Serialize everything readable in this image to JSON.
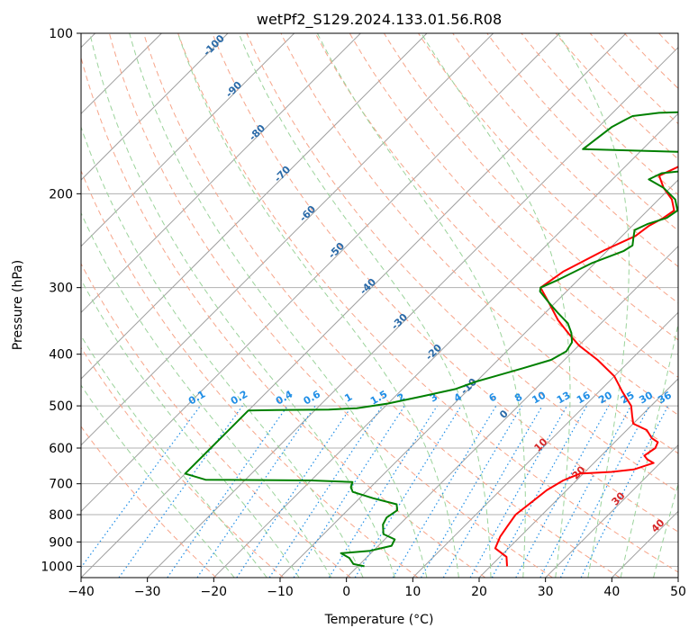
{
  "chart_data": {
    "type": "line",
    "title": "wetPf2_S129.2024.133.01.56.R08",
    "xlabel": "Temperature (°C)",
    "ylabel": "Pressure (hPa)",
    "xlim": [
      -40,
      50
    ],
    "ylim": [
      1050,
      100
    ],
    "yscale": "log",
    "grid": true,
    "x_ticks": [
      "−40",
      "−30",
      "−20",
      "−10",
      "0",
      "10",
      "20",
      "30",
      "40",
      "50"
    ],
    "y_ticks": [
      "100",
      "200",
      "300",
      "400",
      "500",
      "600",
      "700",
      "800",
      "900",
      "1000"
    ],
    "series": [
      {
        "color": "#ff0000",
        "points": [
          [
            22.5,
            1000
          ],
          [
            21.0,
            960
          ],
          [
            18.0,
            925
          ],
          [
            17.0,
            880
          ],
          [
            16.5,
            840
          ],
          [
            16.0,
            800
          ],
          [
            16.5,
            760
          ],
          [
            17.0,
            720
          ],
          [
            18.0,
            690
          ],
          [
            19.5,
            670
          ],
          [
            24.0,
            665
          ],
          [
            27.0,
            658
          ],
          [
            29.0,
            640
          ],
          [
            27.5,
            630
          ],
          [
            26.5,
            620
          ],
          [
            27.0,
            600
          ],
          [
            26.5,
            585
          ],
          [
            25.0,
            575
          ],
          [
            23.0,
            555
          ],
          [
            20.0,
            540
          ],
          [
            18.5,
            520
          ],
          [
            17.0,
            500
          ],
          [
            13.5,
            470
          ],
          [
            10.0,
            440
          ],
          [
            5.0,
            410
          ],
          [
            0.0,
            385
          ],
          [
            -3.5,
            365
          ],
          [
            -7.0,
            345
          ],
          [
            -11.0,
            320
          ],
          [
            -14.5,
            300
          ],
          [
            -13.5,
            280
          ],
          [
            -10.5,
            255
          ],
          [
            -8.0,
            240
          ],
          [
            -7.5,
            230
          ],
          [
            -6.5,
            222
          ],
          [
            -6.0,
            215
          ],
          [
            -8.0,
            205
          ],
          [
            -11.0,
            195
          ],
          [
            -13.5,
            185
          ],
          [
            -12.0,
            178
          ],
          [
            -8.0,
            175
          ],
          [
            -3.0,
            173
          ],
          [
            4.0,
            170
          ],
          [
            10.0,
            168
          ],
          [
            15.0,
            164
          ],
          [
            17.5,
            160
          ],
          [
            18.0,
            155
          ],
          [
            17.5,
            140
          ],
          [
            18.0,
            130
          ],
          [
            19.0,
            125
          ],
          [
            20.5,
            118
          ],
          [
            22.0,
            112
          ],
          [
            23.5,
            105
          ],
          [
            24.0,
            100
          ]
        ]
      },
      {
        "color": "#008000",
        "points": [
          [
            1.0,
            1000
          ],
          [
            -1.0,
            990
          ],
          [
            -2.5,
            965
          ],
          [
            -4.5,
            945
          ],
          [
            -0.5,
            935
          ],
          [
            2.0,
            915
          ],
          [
            1.5,
            890
          ],
          [
            -1.0,
            870
          ],
          [
            -2.5,
            835
          ],
          [
            -3.0,
            810
          ],
          [
            -2.5,
            785
          ],
          [
            -3.5,
            765
          ],
          [
            -8.0,
            745
          ],
          [
            -12.0,
            725
          ],
          [
            -13.0,
            710
          ],
          [
            -13.5,
            695
          ],
          [
            -20.0,
            690
          ],
          [
            -36.0,
            688
          ],
          [
            -40.0,
            670
          ],
          [
            -40.0,
            600
          ],
          [
            -40.0,
            510
          ],
          [
            -36.0,
            509
          ],
          [
            -28.0,
            508
          ],
          [
            -24.0,
            505
          ],
          [
            -20.0,
            495
          ],
          [
            -16.0,
            480
          ],
          [
            -12.0,
            465
          ],
          [
            -10.0,
            450
          ],
          [
            -8.0,
            440
          ],
          [
            -5.0,
            425
          ],
          [
            -2.0,
            410
          ],
          [
            -1.0,
            395
          ],
          [
            -1.5,
            380
          ],
          [
            -3.0,
            365
          ],
          [
            -5.0,
            350
          ],
          [
            -8.0,
            335
          ],
          [
            -11.0,
            320
          ],
          [
            -14.0,
            305
          ],
          [
            -14.5,
            300
          ],
          [
            -13.0,
            290
          ],
          [
            -10.5,
            270
          ],
          [
            -7.5,
            256
          ],
          [
            -7.0,
            250
          ],
          [
            -8.0,
            242
          ],
          [
            -9.0,
            234
          ],
          [
            -8.0,
            228
          ],
          [
            -6.0,
            222
          ],
          [
            -5.5,
            215
          ],
          [
            -7.5,
            205
          ],
          [
            -11.0,
            195
          ],
          [
            -14.5,
            188
          ],
          [
            -13.5,
            183
          ],
          [
            -5.0,
            178
          ],
          [
            2.0,
            173
          ],
          [
            3.5,
            170
          ],
          [
            -5.0,
            168
          ],
          [
            -29.0,
            165
          ],
          [
            -28.0,
            150
          ],
          [
            -27.0,
            145
          ],
          [
            -26.5,
            143
          ],
          [
            -23.0,
            141
          ],
          [
            -15.0,
            140
          ],
          [
            -7.0,
            136
          ],
          [
            -4.5,
            130
          ],
          [
            -4.0,
            125
          ],
          [
            -3.0,
            118
          ],
          [
            -2.0,
            112
          ],
          [
            0.0,
            105
          ],
          [
            1.0,
            100
          ]
        ]
      }
    ],
    "mixing_ratio_labels": [
      "0.1",
      "0.2",
      "0.4",
      "0.6",
      "1",
      "1.5",
      "2",
      "3",
      "4",
      "6",
      "8",
      "10",
      "13",
      "16",
      "20",
      "25",
      "30",
      "36"
    ],
    "dry_adiabat_labels": [
      "-100",
      "-90",
      "-80",
      "-70",
      "-60",
      "-50",
      "-40",
      "-30",
      "-20",
      "-10",
      "0",
      "10",
      "20",
      "30",
      "40"
    ],
    "colors": {
      "temperature": "#ff0000",
      "dewpoint": "#008000",
      "isotherm": "#a0a0a0",
      "dry_adiabat": "#f7a58a",
      "moist_adiabat": "#9bd39b",
      "mixing_ratio": "#1f8ee6",
      "label_blue": "#2a6aa8",
      "label_red": "#d62728"
    }
  }
}
